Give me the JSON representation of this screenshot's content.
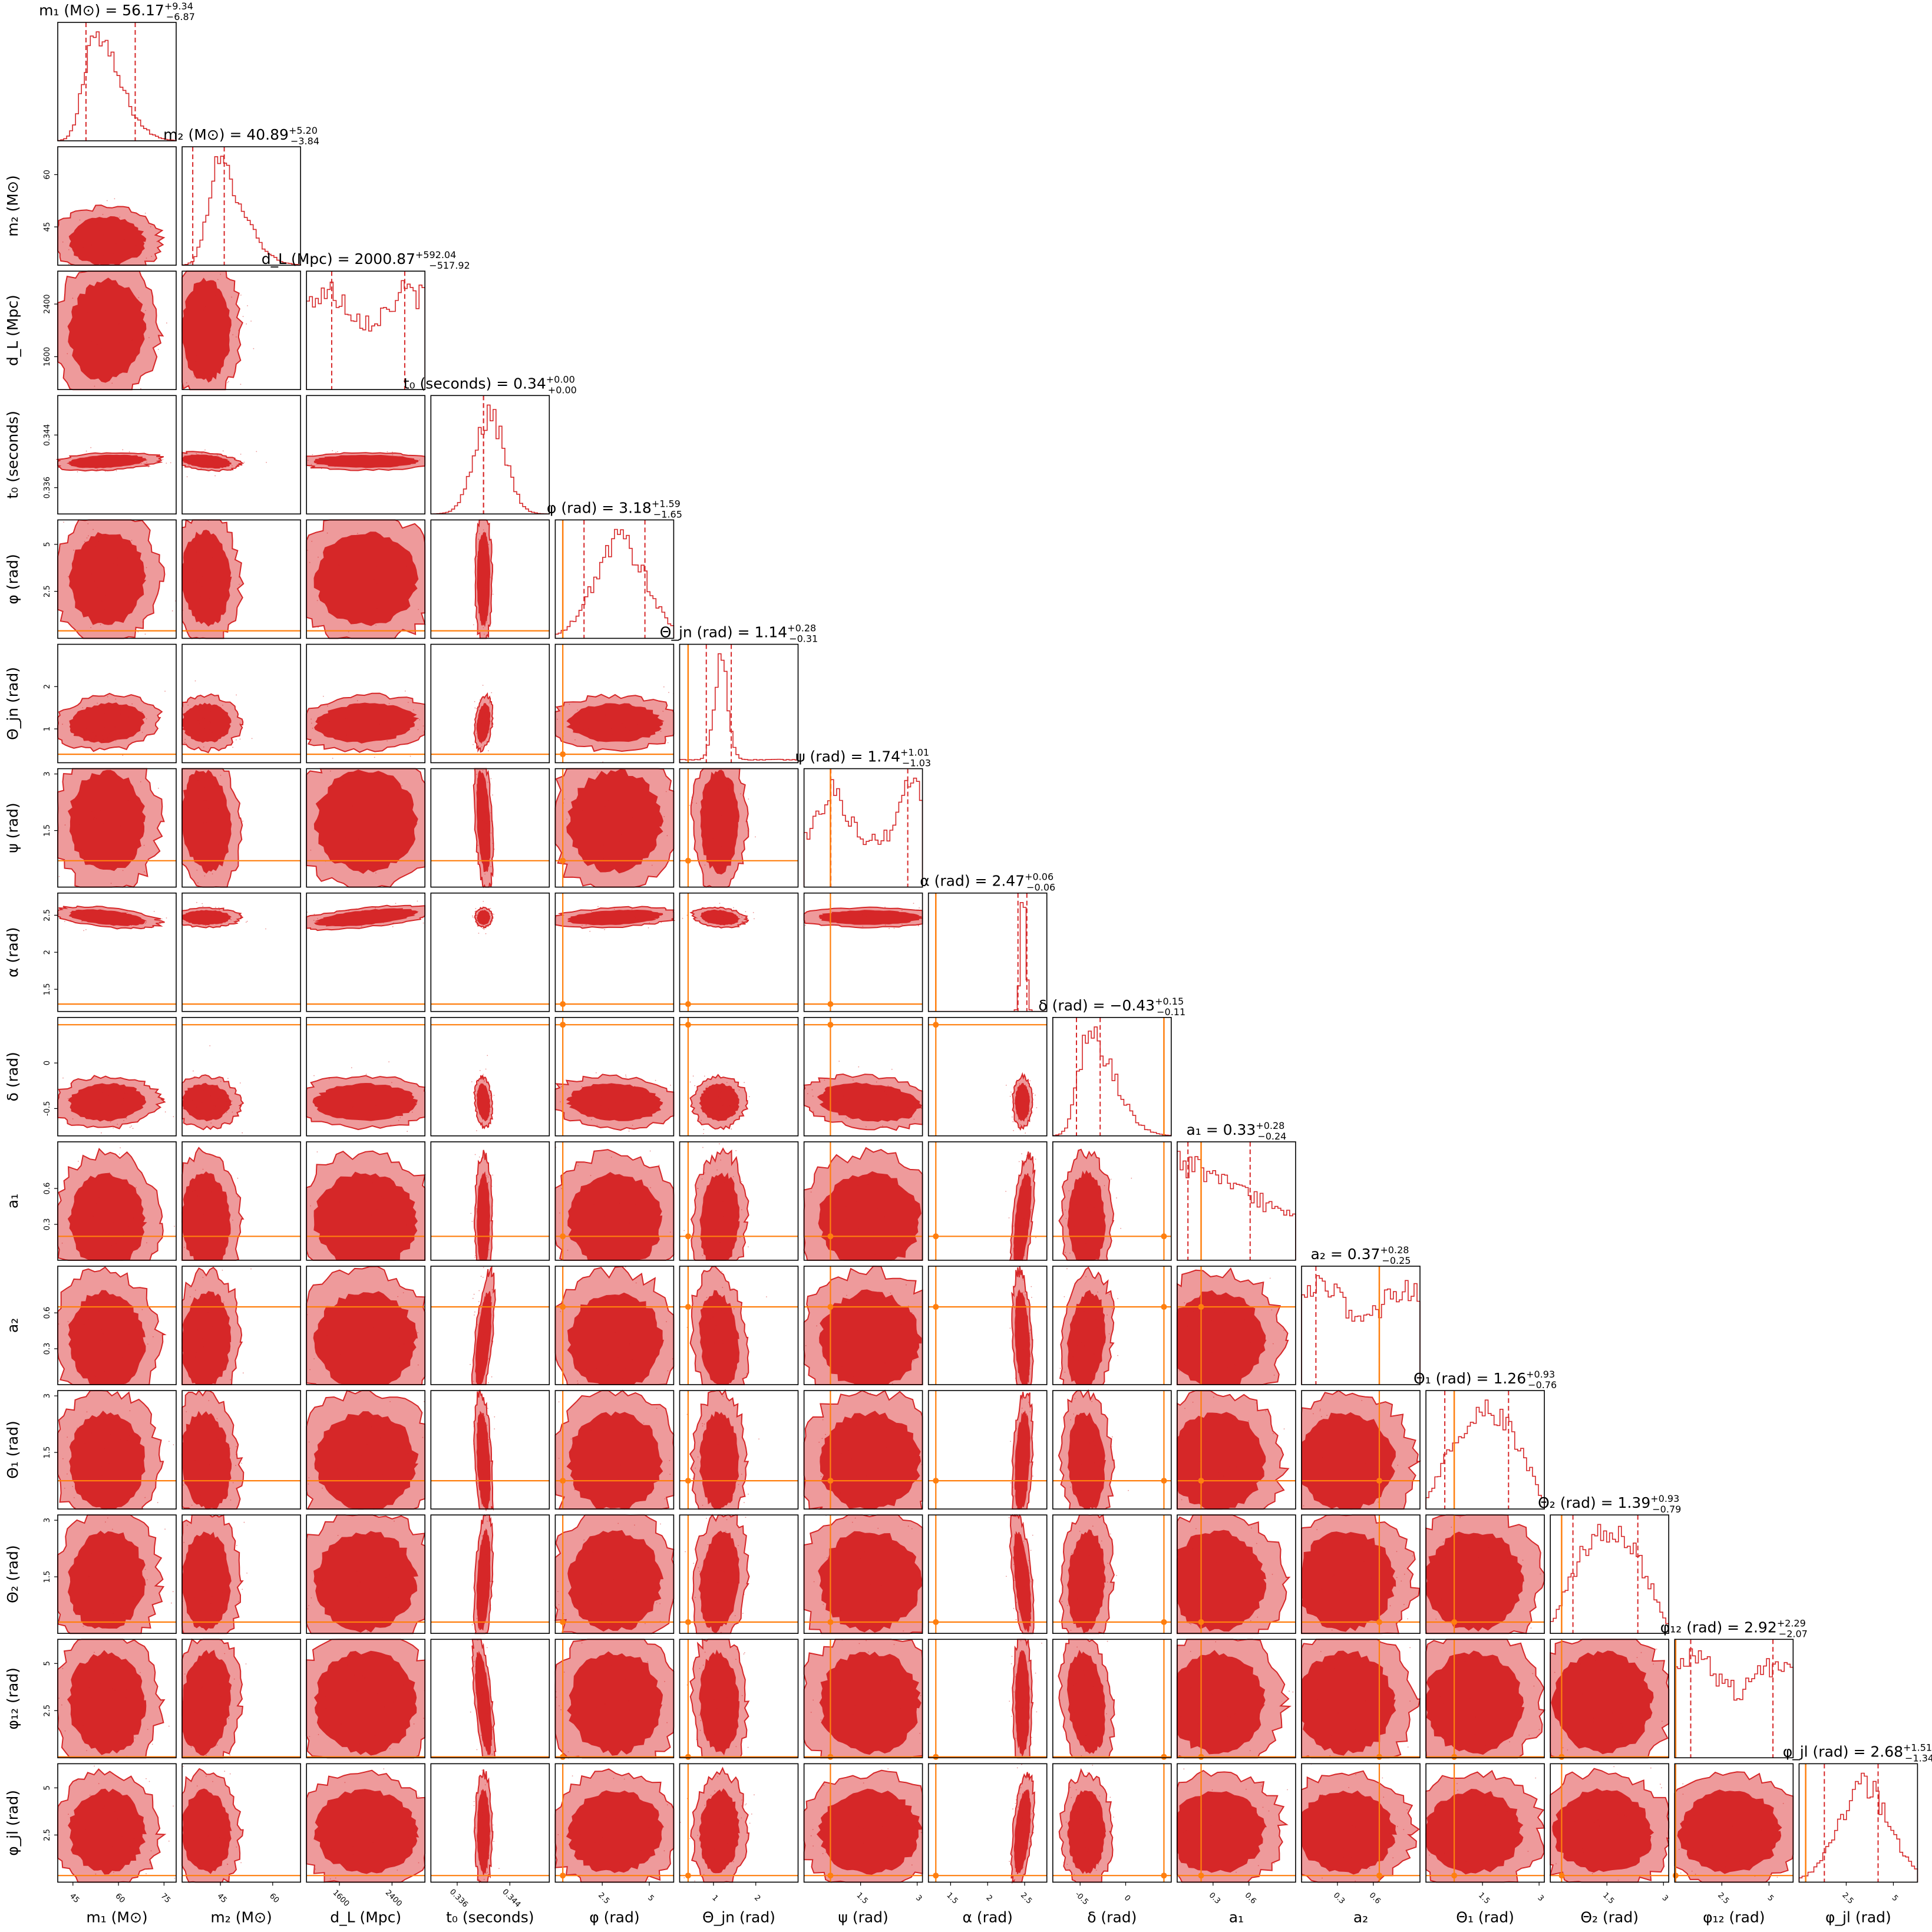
{
  "colors": {
    "posterior": "#d62728",
    "contour_outer": "#ee9a9b",
    "contour_inner": "#d62728",
    "injection": "#ff7f0e",
    "frame": "#000000"
  },
  "chart_data": {
    "type": "corner",
    "grid": false,
    "parameters": [
      {
        "key": "m1",
        "label": "m₁ (M⊙)",
        "title": "m₁ (M⊙) = 56.17",
        "median": 56.17,
        "err_plus": 9.34,
        "err_minus": 6.87,
        "range": [
          40,
          79
        ],
        "ticks": [
          45,
          60,
          75
        ],
        "injection": null,
        "hist_shape": "skewed"
      },
      {
        "key": "m2",
        "label": "m₂ (M⊙)",
        "title": "m₂ (M⊙) = 40.89",
        "median": 40.89,
        "err_plus": 5.2,
        "err_minus": 3.84,
        "range": [
          34,
          68
        ],
        "ticks": [
          45,
          60
        ],
        "injection": null,
        "hist_shape": "skewed"
      },
      {
        "key": "dL",
        "label": "d_L (Mpc)",
        "title": "d_L (Mpc) = 2000.87",
        "median": 2000.87,
        "err_plus": 592.04,
        "err_minus": 517.92,
        "range": [
          1100,
          2900
        ],
        "ticks": [
          1600,
          2400
        ],
        "injection": null,
        "hist_shape": "flat"
      },
      {
        "key": "t0",
        "label": "t₀ (seconds)",
        "title": "t₀ (seconds) = 0.34",
        "median": 0.34,
        "err_plus": 0.0,
        "err_minus": 0.0,
        "range": [
          0.332,
          0.35
        ],
        "ticks": [
          0.336,
          0.344
        ],
        "injection": null,
        "hist_shape": "normal"
      },
      {
        "key": "phi",
        "label": "φ (rad)",
        "title": "φ (rad) = 3.18",
        "median": 3.18,
        "err_plus": 1.59,
        "err_minus": 1.65,
        "range": [
          0,
          6.3
        ],
        "ticks": [
          2.5,
          5.0
        ],
        "injection": 0.4,
        "hist_shape": "broad"
      },
      {
        "key": "thetajn",
        "label": "Θ_jn (rad)",
        "title": "Θ_jn (rad) = 1.14",
        "median": 1.14,
        "err_plus": 0.28,
        "err_minus": 0.31,
        "range": [
          0.2,
          3.0
        ],
        "ticks": [
          1,
          2
        ],
        "injection": 0.4,
        "hist_shape": "narrow"
      },
      {
        "key": "psi",
        "label": "ψ (rad)",
        "title": "ψ (rad) = 1.74",
        "median": 1.74,
        "err_plus": 1.01,
        "err_minus": 1.03,
        "range": [
          0,
          3.14
        ],
        "ticks": [
          1.5,
          3.0
        ],
        "injection": 0.7,
        "hist_shape": "bimodal"
      },
      {
        "key": "alpha",
        "label": "α (rad)",
        "title": "α (rad) = 2.47",
        "median": 2.47,
        "err_plus": 0.06,
        "err_minus": 0.06,
        "range": [
          1.2,
          2.8
        ],
        "ticks": [
          1.5,
          2.0,
          2.5
        ],
        "injection": 1.3,
        "hist_shape": "spike"
      },
      {
        "key": "delta",
        "label": "δ (rad)",
        "title": "δ (rad) = −0.43",
        "median": -0.43,
        "err_plus": 0.15,
        "err_minus": 0.11,
        "range": [
          -0.8,
          0.5
        ],
        "ticks": [
          -0.5,
          0.0
        ],
        "injection": 0.42,
        "hist_shape": "skewed"
      },
      {
        "key": "a1",
        "label": "a₁",
        "title": "a₁ = 0.33",
        "median": 0.33,
        "err_plus": 0.28,
        "err_minus": 0.24,
        "range": [
          0,
          0.99
        ],
        "ticks": [
          0.3,
          0.6
        ],
        "injection": 0.2,
        "hist_shape": "declining"
      },
      {
        "key": "a2",
        "label": "a₂",
        "title": "a₂ = 0.37",
        "median": 0.37,
        "err_plus": 0.28,
        "err_minus": 0.25,
        "range": [
          0,
          0.99
        ],
        "ticks": [
          0.3,
          0.6
        ],
        "injection": 0.65,
        "hist_shape": "flat"
      },
      {
        "key": "theta1",
        "label": "Θ₁ (rad)",
        "title": "Θ₁ (rad) = 1.26",
        "median": 1.26,
        "err_plus": 0.93,
        "err_minus": 0.76,
        "range": [
          0,
          3.14
        ],
        "ticks": [
          1.5,
          3.0
        ],
        "injection": 0.75,
        "hist_shape": "sine"
      },
      {
        "key": "theta2",
        "label": "Θ₂ (rad)",
        "title": "Θ₂ (rad) = 1.39",
        "median": 1.39,
        "err_plus": 0.93,
        "err_minus": 0.79,
        "range": [
          0,
          3.14
        ],
        "ticks": [
          1.5,
          3.0
        ],
        "injection": 0.3,
        "hist_shape": "sine"
      },
      {
        "key": "phi12",
        "label": "φ₁₂ (rad)",
        "title": "φ₁₂ (rad) = 2.92",
        "median": 2.92,
        "err_plus": 2.29,
        "err_minus": 2.07,
        "range": [
          0,
          6.28
        ],
        "ticks": [
          2.5,
          5.0
        ],
        "injection": 0.05,
        "hist_shape": "flat"
      },
      {
        "key": "phijl",
        "label": "φ_jl (rad)",
        "title": "φ_jl (rad) = 2.68",
        "median": 2.68,
        "err_plus": 1.51,
        "err_minus": 1.34,
        "range": [
          0,
          6.28
        ],
        "ticks": [
          2.5,
          5.0
        ],
        "injection": 0.35,
        "hist_shape": "broad"
      }
    ]
  }
}
